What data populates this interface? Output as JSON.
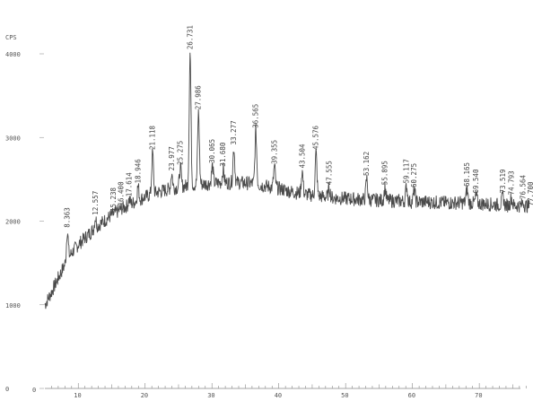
{
  "chart_data": {
    "type": "line",
    "ylabel": "CPS",
    "xlim": [
      5,
      77.5
    ],
    "ylim": [
      0,
      4000
    ],
    "y_ticks": [
      "0",
      "1000",
      "2000",
      "3000",
      "4000"
    ],
    "x_ticks": [
      "10",
      "20",
      "30",
      "40",
      "50",
      "60",
      "70"
    ],
    "x_tick_values": [
      10,
      20,
      30,
      40,
      50,
      60,
      70
    ],
    "y_tick_values": [
      0,
      1000,
      2000,
      3000,
      4000
    ],
    "grid": false,
    "baseline_points": [
      [
        5.0,
        1000
      ],
      [
        6.0,
        1150
      ],
      [
        7.0,
        1320
      ],
      [
        8.0,
        1480
      ],
      [
        9.0,
        1620
      ],
      [
        10.0,
        1720
      ],
      [
        11.0,
        1800
      ],
      [
        12.0,
        1880
      ],
      [
        13.0,
        1950
      ],
      [
        14.0,
        2010
      ],
      [
        15.0,
        2070
      ],
      [
        16.0,
        2120
      ],
      [
        17.0,
        2170
      ],
      [
        18.0,
        2210
      ],
      [
        19.0,
        2250
      ],
      [
        20.0,
        2290
      ],
      [
        22.0,
        2350
      ],
      [
        24.0,
        2390
      ],
      [
        26.0,
        2420
      ],
      [
        28.0,
        2440
      ],
      [
        30.0,
        2450
      ],
      [
        32.0,
        2460
      ],
      [
        34.0,
        2460
      ],
      [
        36.0,
        2450
      ],
      [
        38.0,
        2420
      ],
      [
        40.0,
        2390
      ],
      [
        42.0,
        2350
      ],
      [
        44.0,
        2320
      ],
      [
        46.0,
        2300
      ],
      [
        48.0,
        2280
      ],
      [
        50.0,
        2270
      ],
      [
        52.0,
        2260
      ],
      [
        55.0,
        2250
      ],
      [
        58.0,
        2240
      ],
      [
        60.0,
        2230
      ],
      [
        62.0,
        2230
      ],
      [
        65.0,
        2220
      ],
      [
        68.0,
        2220
      ],
      [
        70.0,
        2210
      ],
      [
        72.0,
        2200
      ],
      [
        74.0,
        2190
      ],
      [
        77.5,
        2180
      ]
    ],
    "peaks": [
      {
        "x": 8.363,
        "y": 1890,
        "label": "8.363"
      },
      {
        "x": 12.557,
        "y": 2040,
        "label": "12.557"
      },
      {
        "x": 15.238,
        "y": 2080,
        "label": "15.238"
      },
      {
        "x": 16.4,
        "y": 2150,
        "label": "16.400"
      },
      {
        "x": 17.614,
        "y": 2260,
        "label": "17.614"
      },
      {
        "x": 18.946,
        "y": 2420,
        "label": "18.946"
      },
      {
        "x": 21.118,
        "y": 2820,
        "label": "21.118"
      },
      {
        "x": 23.977,
        "y": 2570,
        "label": "23.977"
      },
      {
        "x": 25.275,
        "y": 2640,
        "label": "25.275"
      },
      {
        "x": 26.731,
        "y": 4020,
        "label": "26.731"
      },
      {
        "x": 27.986,
        "y": 3300,
        "label": "27.986"
      },
      {
        "x": 30.065,
        "y": 2660,
        "label": "30.065"
      },
      {
        "x": 31.68,
        "y": 2620,
        "label": "31.680"
      },
      {
        "x": 33.277,
        "y": 2880,
        "label": "33.277"
      },
      {
        "x": 36.565,
        "y": 3080,
        "label": "36.565"
      },
      {
        "x": 39.355,
        "y": 2650,
        "label": "39.355"
      },
      {
        "x": 43.504,
        "y": 2600,
        "label": "43.504"
      },
      {
        "x": 45.576,
        "y": 2820,
        "label": "45.576"
      },
      {
        "x": 47.555,
        "y": 2400,
        "label": "47.555"
      },
      {
        "x": 53.162,
        "y": 2510,
        "label": "53.162"
      },
      {
        "x": 55.895,
        "y": 2400,
        "label": "55.895"
      },
      {
        "x": 59.117,
        "y": 2420,
        "label": "59.117"
      },
      {
        "x": 60.275,
        "y": 2370,
        "label": "60.275"
      },
      {
        "x": 68.165,
        "y": 2380,
        "label": "68.165"
      },
      {
        "x": 69.54,
        "y": 2300,
        "label": "69.540"
      },
      {
        "x": 73.519,
        "y": 2300,
        "label": "73.519"
      },
      {
        "x": 74.793,
        "y": 2280,
        "label": "74.793"
      },
      {
        "x": 76.564,
        "y": 2230,
        "label": "76.564"
      },
      {
        "x": 77.7,
        "y": 2150,
        "label": "77.700"
      }
    ]
  }
}
